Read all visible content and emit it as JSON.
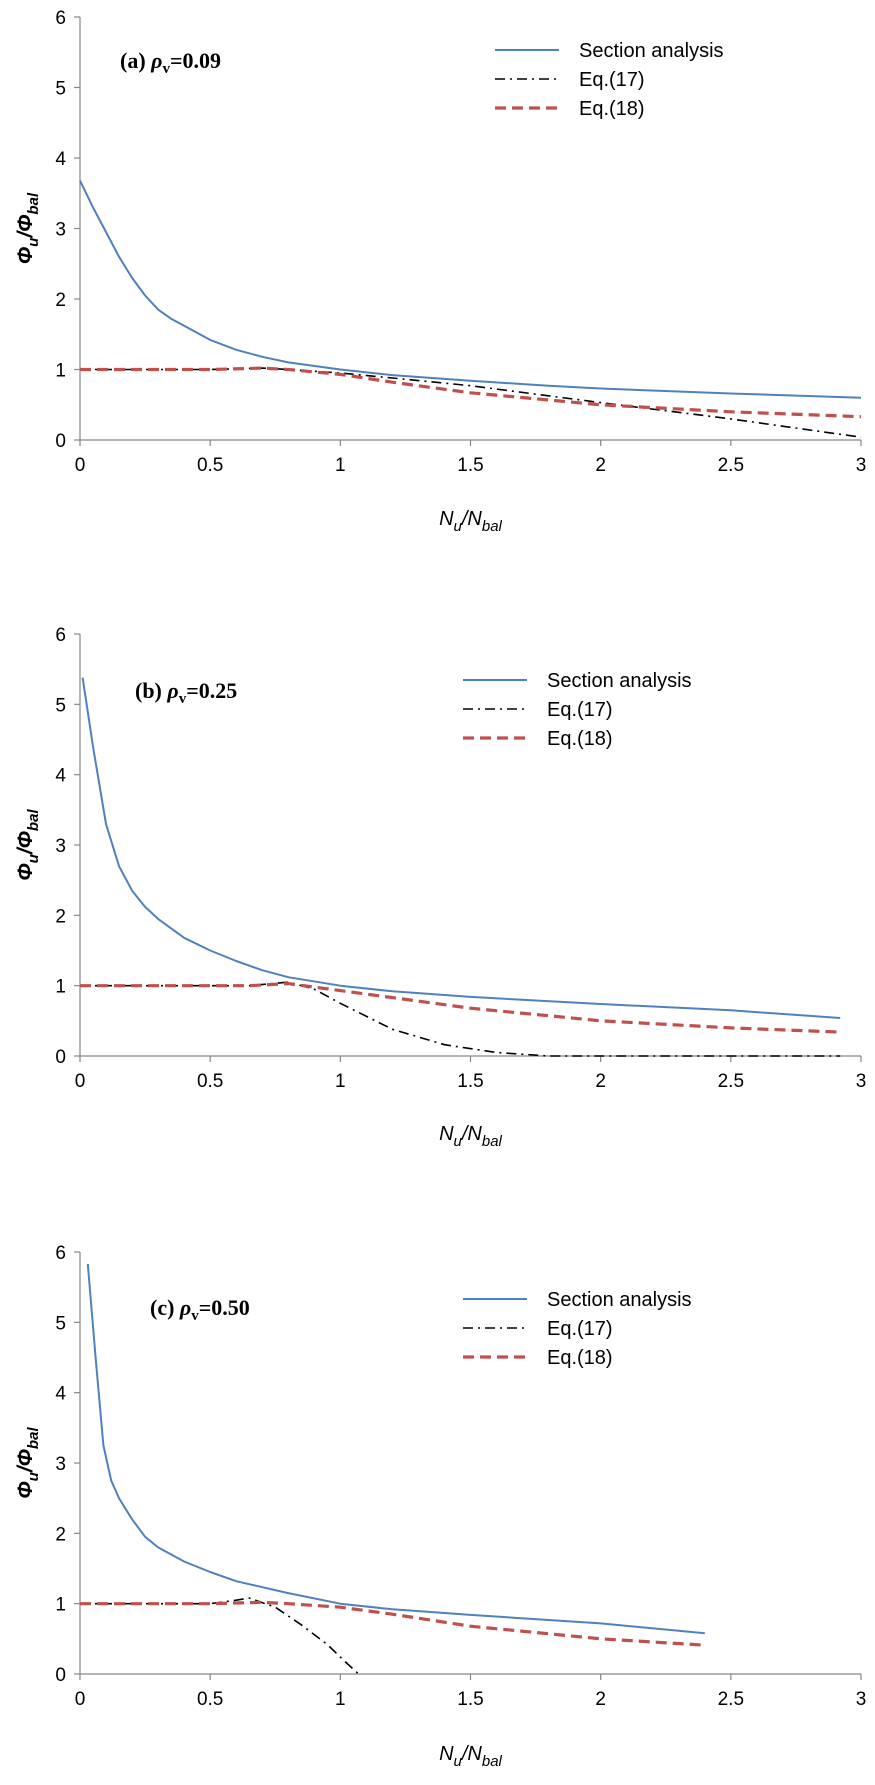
{
  "colors": {
    "section": "#4F81BD",
    "eq17": "#000000",
    "eq18": "#C0504D"
  },
  "chart_data": [
    {
      "type": "line",
      "panel_label": "(a) ρv=0.09",
      "xlabel": "Nu/Nbal",
      "ylabel": "Φu/Φbal",
      "xlim": [
        0,
        3
      ],
      "ylim": [
        0,
        6
      ],
      "x_ticks": [
        "0",
        "0.5",
        "1",
        "1.5",
        "2",
        "2.5",
        "3"
      ],
      "y_ticks": [
        "0",
        "1",
        "2",
        "3",
        "4",
        "5",
        "6"
      ],
      "legend": {
        "position": "top-right",
        "entries": [
          "Section analysis",
          "Eq.(17)",
          "Eq.(18)"
        ]
      },
      "series": [
        {
          "name": "Section analysis",
          "style": "solid",
          "x": [
            0,
            0.05,
            0.1,
            0.15,
            0.2,
            0.25,
            0.3,
            0.35,
            0.4,
            0.5,
            0.6,
            0.7,
            0.8,
            1.0,
            1.2,
            1.5,
            1.8,
            2.0,
            2.5,
            3.0
          ],
          "y": [
            3.68,
            3.3,
            2.95,
            2.6,
            2.3,
            2.05,
            1.85,
            1.72,
            1.62,
            1.42,
            1.28,
            1.18,
            1.1,
            1.0,
            0.92,
            0.84,
            0.77,
            0.73,
            0.66,
            0.6
          ]
        },
        {
          "name": "Eq.(17)",
          "style": "dashdot",
          "x": [
            0,
            0.3,
            0.5,
            0.7,
            0.8,
            1.0,
            1.2,
            1.5,
            2.0,
            2.5,
            3.0
          ],
          "y": [
            1.0,
            1.0,
            1.0,
            1.02,
            1.0,
            0.95,
            0.88,
            0.77,
            0.53,
            0.3,
            0.04
          ]
        },
        {
          "name": "Eq.(18)",
          "style": "dashed",
          "x": [
            0,
            0.3,
            0.5,
            0.7,
            0.8,
            1.0,
            1.2,
            1.5,
            2.0,
            2.5,
            3.0
          ],
          "y": [
            1.0,
            1.0,
            1.0,
            1.02,
            1.0,
            0.93,
            0.82,
            0.67,
            0.5,
            0.4,
            0.33
          ]
        }
      ]
    },
    {
      "type": "line",
      "panel_label": "(b) ρv=0.25",
      "xlabel": "Nu/Nbal",
      "ylabel": "Φu/Φbal",
      "xlim": [
        0,
        3
      ],
      "ylim": [
        0,
        6
      ],
      "x_ticks": [
        "0",
        "0.5",
        "1",
        "1.5",
        "2",
        "2.5",
        "3"
      ],
      "y_ticks": [
        "0",
        "1",
        "2",
        "3",
        "4",
        "5",
        "6"
      ],
      "legend": {
        "position": "top-right",
        "entries": [
          "Section analysis",
          "Eq.(17)",
          "Eq.(18)"
        ]
      },
      "series": [
        {
          "name": "Section analysis",
          "style": "solid",
          "x": [
            0.01,
            0.05,
            0.1,
            0.15,
            0.2,
            0.25,
            0.3,
            0.4,
            0.5,
            0.6,
            0.7,
            0.8,
            1.0,
            1.2,
            1.5,
            2.0,
            2.5,
            2.92
          ],
          "y": [
            5.38,
            4.4,
            3.3,
            2.7,
            2.35,
            2.12,
            1.95,
            1.68,
            1.5,
            1.35,
            1.22,
            1.12,
            1.0,
            0.92,
            0.84,
            0.74,
            0.65,
            0.54
          ]
        },
        {
          "name": "Eq.(17)",
          "style": "dashdot",
          "x": [
            0,
            0.3,
            0.5,
            0.65,
            0.8,
            0.9,
            1.0,
            1.2,
            1.4,
            1.6,
            1.8,
            2.0,
            2.5,
            2.92
          ],
          "y": [
            1.0,
            1.0,
            1.0,
            1.0,
            1.05,
            0.95,
            0.75,
            0.38,
            0.16,
            0.05,
            0.0,
            0.0,
            0.0,
            0.0
          ]
        },
        {
          "name": "Eq.(18)",
          "style": "dashed",
          "x": [
            0,
            0.3,
            0.5,
            0.65,
            0.8,
            1.0,
            1.2,
            1.5,
            2.0,
            2.5,
            2.92
          ],
          "y": [
            1.0,
            1.0,
            1.0,
            1.0,
            1.03,
            0.93,
            0.83,
            0.68,
            0.5,
            0.4,
            0.34
          ]
        }
      ]
    },
    {
      "type": "line",
      "panel_label": "(c) ρv=0.50",
      "xlabel": "Nu/Nbal",
      "ylabel": "Φu/Φbal",
      "xlim": [
        0,
        3
      ],
      "ylim": [
        0,
        6
      ],
      "x_ticks": [
        "0",
        "0.5",
        "1",
        "1.5",
        "2",
        "2.5",
        "3"
      ],
      "y_ticks": [
        "0",
        "1",
        "2",
        "3",
        "4",
        "5",
        "6"
      ],
      "legend": {
        "position": "top-right",
        "entries": [
          "Section analysis",
          "Eq.(17)",
          "Eq.(18)"
        ]
      },
      "series": [
        {
          "name": "Section analysis",
          "style": "solid",
          "x": [
            0.03,
            0.06,
            0.09,
            0.12,
            0.15,
            0.2,
            0.25,
            0.3,
            0.4,
            0.5,
            0.6,
            0.8,
            1.0,
            1.2,
            1.5,
            2.0,
            2.4
          ],
          "y": [
            5.83,
            4.5,
            3.25,
            2.75,
            2.5,
            2.2,
            1.95,
            1.8,
            1.6,
            1.45,
            1.32,
            1.15,
            1.0,
            0.92,
            0.84,
            0.72,
            0.58
          ]
        },
        {
          "name": "Eq.(17)",
          "style": "dashdot",
          "x": [
            0,
            0.3,
            0.5,
            0.6,
            0.65,
            0.75,
            0.85,
            0.95,
            1.02,
            1.07
          ],
          "y": [
            1.0,
            1.0,
            1.0,
            1.05,
            1.08,
            0.95,
            0.7,
            0.42,
            0.17,
            0.0
          ]
        },
        {
          "name": "Eq.(18)",
          "style": "dashed",
          "x": [
            0,
            0.3,
            0.5,
            0.6,
            0.7,
            0.8,
            1.0,
            1.2,
            1.5,
            2.0,
            2.4
          ],
          "y": [
            1.0,
            1.0,
            1.0,
            1.01,
            1.02,
            1.0,
            0.95,
            0.85,
            0.68,
            0.5,
            0.41
          ]
        }
      ]
    }
  ]
}
